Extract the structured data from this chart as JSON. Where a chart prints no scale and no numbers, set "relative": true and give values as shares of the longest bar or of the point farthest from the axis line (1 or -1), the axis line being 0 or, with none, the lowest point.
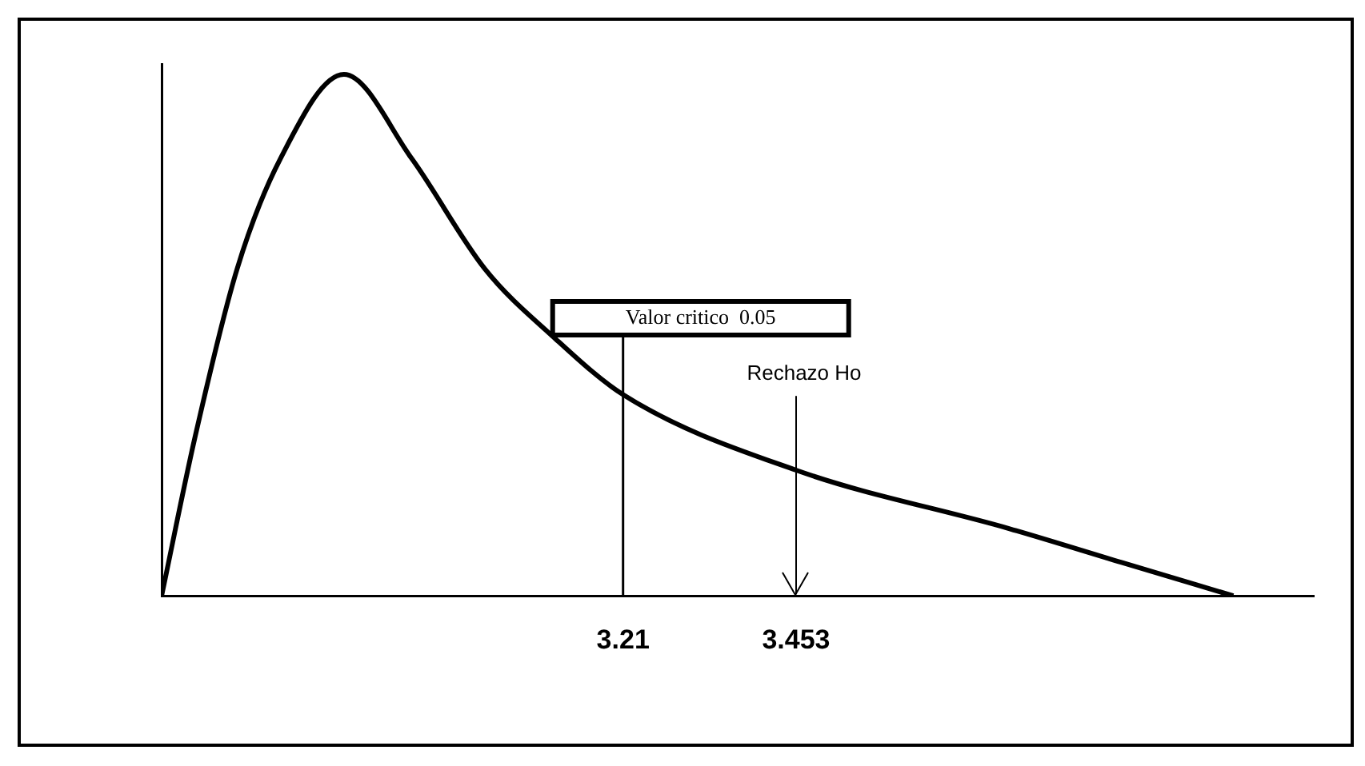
{
  "chart_data": {
    "type": "line",
    "relative": true,
    "legend": false,
    "grid": false,
    "marker": "none",
    "line_style": "solid",
    "x": [
      2.562,
      2.609,
      2.668,
      2.729,
      2.818,
      2.913,
      3.016,
      3.111,
      3.21,
      3.453,
      3.752,
      3.91,
      4.067
    ],
    "series": [
      {
        "color": "#000000",
        "values": [
          0,
          0.305,
          0.627,
          0.839,
          1,
          0.839,
          0.627,
          0.498,
          0.386,
          0.241,
          0.129,
          0.064,
          0
        ]
      }
    ],
    "xlim": [
      2.562,
      4.18
    ],
    "xticks": [
      3.21,
      3.453
    ],
    "ref_lines": [
      {
        "axis": "x",
        "value": 3.21,
        "label": "Valor critico  0.05",
        "color": "#000000"
      },
      {
        "axis": "x",
        "value": 3.453,
        "label": "Rechazo Ho",
        "color": "#000000"
      }
    ]
  }
}
